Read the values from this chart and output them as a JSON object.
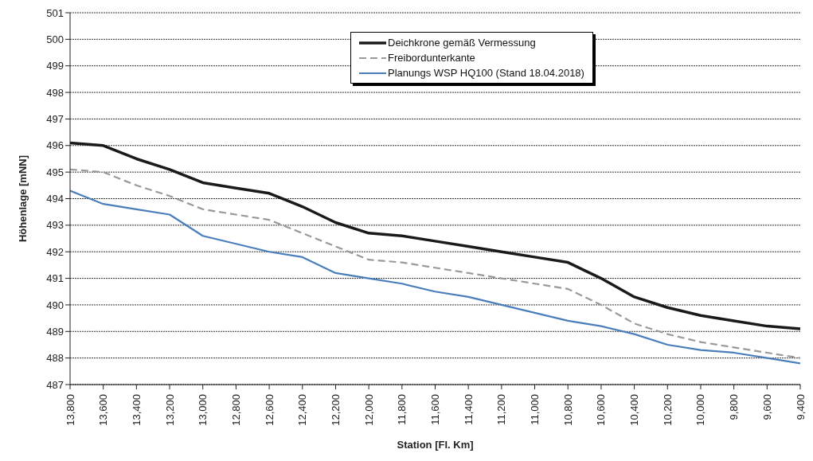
{
  "chart_data": {
    "type": "line",
    "xlabel": "Station [Fl. Km]",
    "ylabel": "Höhenlage [mNN]",
    "x": [
      13800,
      13600,
      13400,
      13200,
      13000,
      12800,
      12600,
      12400,
      12200,
      12000,
      11800,
      11600,
      11400,
      11200,
      11000,
      10800,
      10600,
      10400,
      10200,
      10000,
      9800,
      9600,
      9400
    ],
    "series": [
      {
        "name": "Deichkrone gemäß Vermessung",
        "color": "#1a1a1a",
        "line_style": "solid",
        "values": [
          496.1,
          496.0,
          495.5,
          495.1,
          494.6,
          494.4,
          494.2,
          493.7,
          493.1,
          492.7,
          492.6,
          492.4,
          492.2,
          492.0,
          491.8,
          491.6,
          491.0,
          490.3,
          489.9,
          489.6,
          489.4,
          489.2,
          489.1
        ]
      },
      {
        "name": "Freibordunterkante",
        "color": "#999999",
        "line_style": "dashed",
        "values": [
          495.1,
          495.0,
          494.5,
          494.1,
          493.6,
          493.4,
          493.2,
          492.7,
          492.2,
          491.7,
          491.6,
          491.4,
          491.2,
          491.0,
          490.8,
          490.6,
          490.0,
          489.3,
          488.9,
          488.6,
          488.4,
          488.2,
          488.0
        ]
      },
      {
        "name": "Planungs WSP HQ100 (Stand 18.04.2018)",
        "color": "#4a7ebb",
        "line_style": "solid",
        "values": [
          494.3,
          493.8,
          493.6,
          493.4,
          492.6,
          492.3,
          492.0,
          491.8,
          491.2,
          491.0,
          490.8,
          490.5,
          490.3,
          490.0,
          489.7,
          489.4,
          489.2,
          488.9,
          488.5,
          488.3,
          488.2,
          488.0,
          487.8
        ]
      }
    ],
    "xlim": [
      13800,
      9400
    ],
    "xticks": [
      {
        "value": 13800,
        "label": "13,800"
      },
      {
        "value": 13600,
        "label": "13,600"
      },
      {
        "value": 13400,
        "label": "13,400"
      },
      {
        "value": 13200,
        "label": "13,200"
      },
      {
        "value": 13000,
        "label": "13,000"
      },
      {
        "value": 12800,
        "label": "12,800"
      },
      {
        "value": 12600,
        "label": "12,600"
      },
      {
        "value": 12400,
        "label": "12,400"
      },
      {
        "value": 12200,
        "label": "12,200"
      },
      {
        "value": 12000,
        "label": "12,000"
      },
      {
        "value": 11800,
        "label": "11,800"
      },
      {
        "value": 11600,
        "label": "11,600"
      },
      {
        "value": 11400,
        "label": "11,400"
      },
      {
        "value": 11200,
        "label": "11,200"
      },
      {
        "value": 11000,
        "label": "11,000"
      },
      {
        "value": 10800,
        "label": "10,800"
      },
      {
        "value": 10600,
        "label": "10,600"
      },
      {
        "value": 10400,
        "label": "10,400"
      },
      {
        "value": 10200,
        "label": "10,200"
      },
      {
        "value": 10000,
        "label": "10,000"
      },
      {
        "value": 9800,
        "label": "9,800"
      },
      {
        "value": 9600,
        "label": "9,600"
      },
      {
        "value": 9400,
        "label": "9,400"
      }
    ],
    "ylim": [
      487,
      501
    ],
    "yticks": [
      487,
      488,
      489,
      490,
      491,
      492,
      493,
      494,
      495,
      496,
      497,
      498,
      499,
      500,
      501
    ],
    "grid": "y",
    "legend": "top",
    "marker": "none"
  }
}
